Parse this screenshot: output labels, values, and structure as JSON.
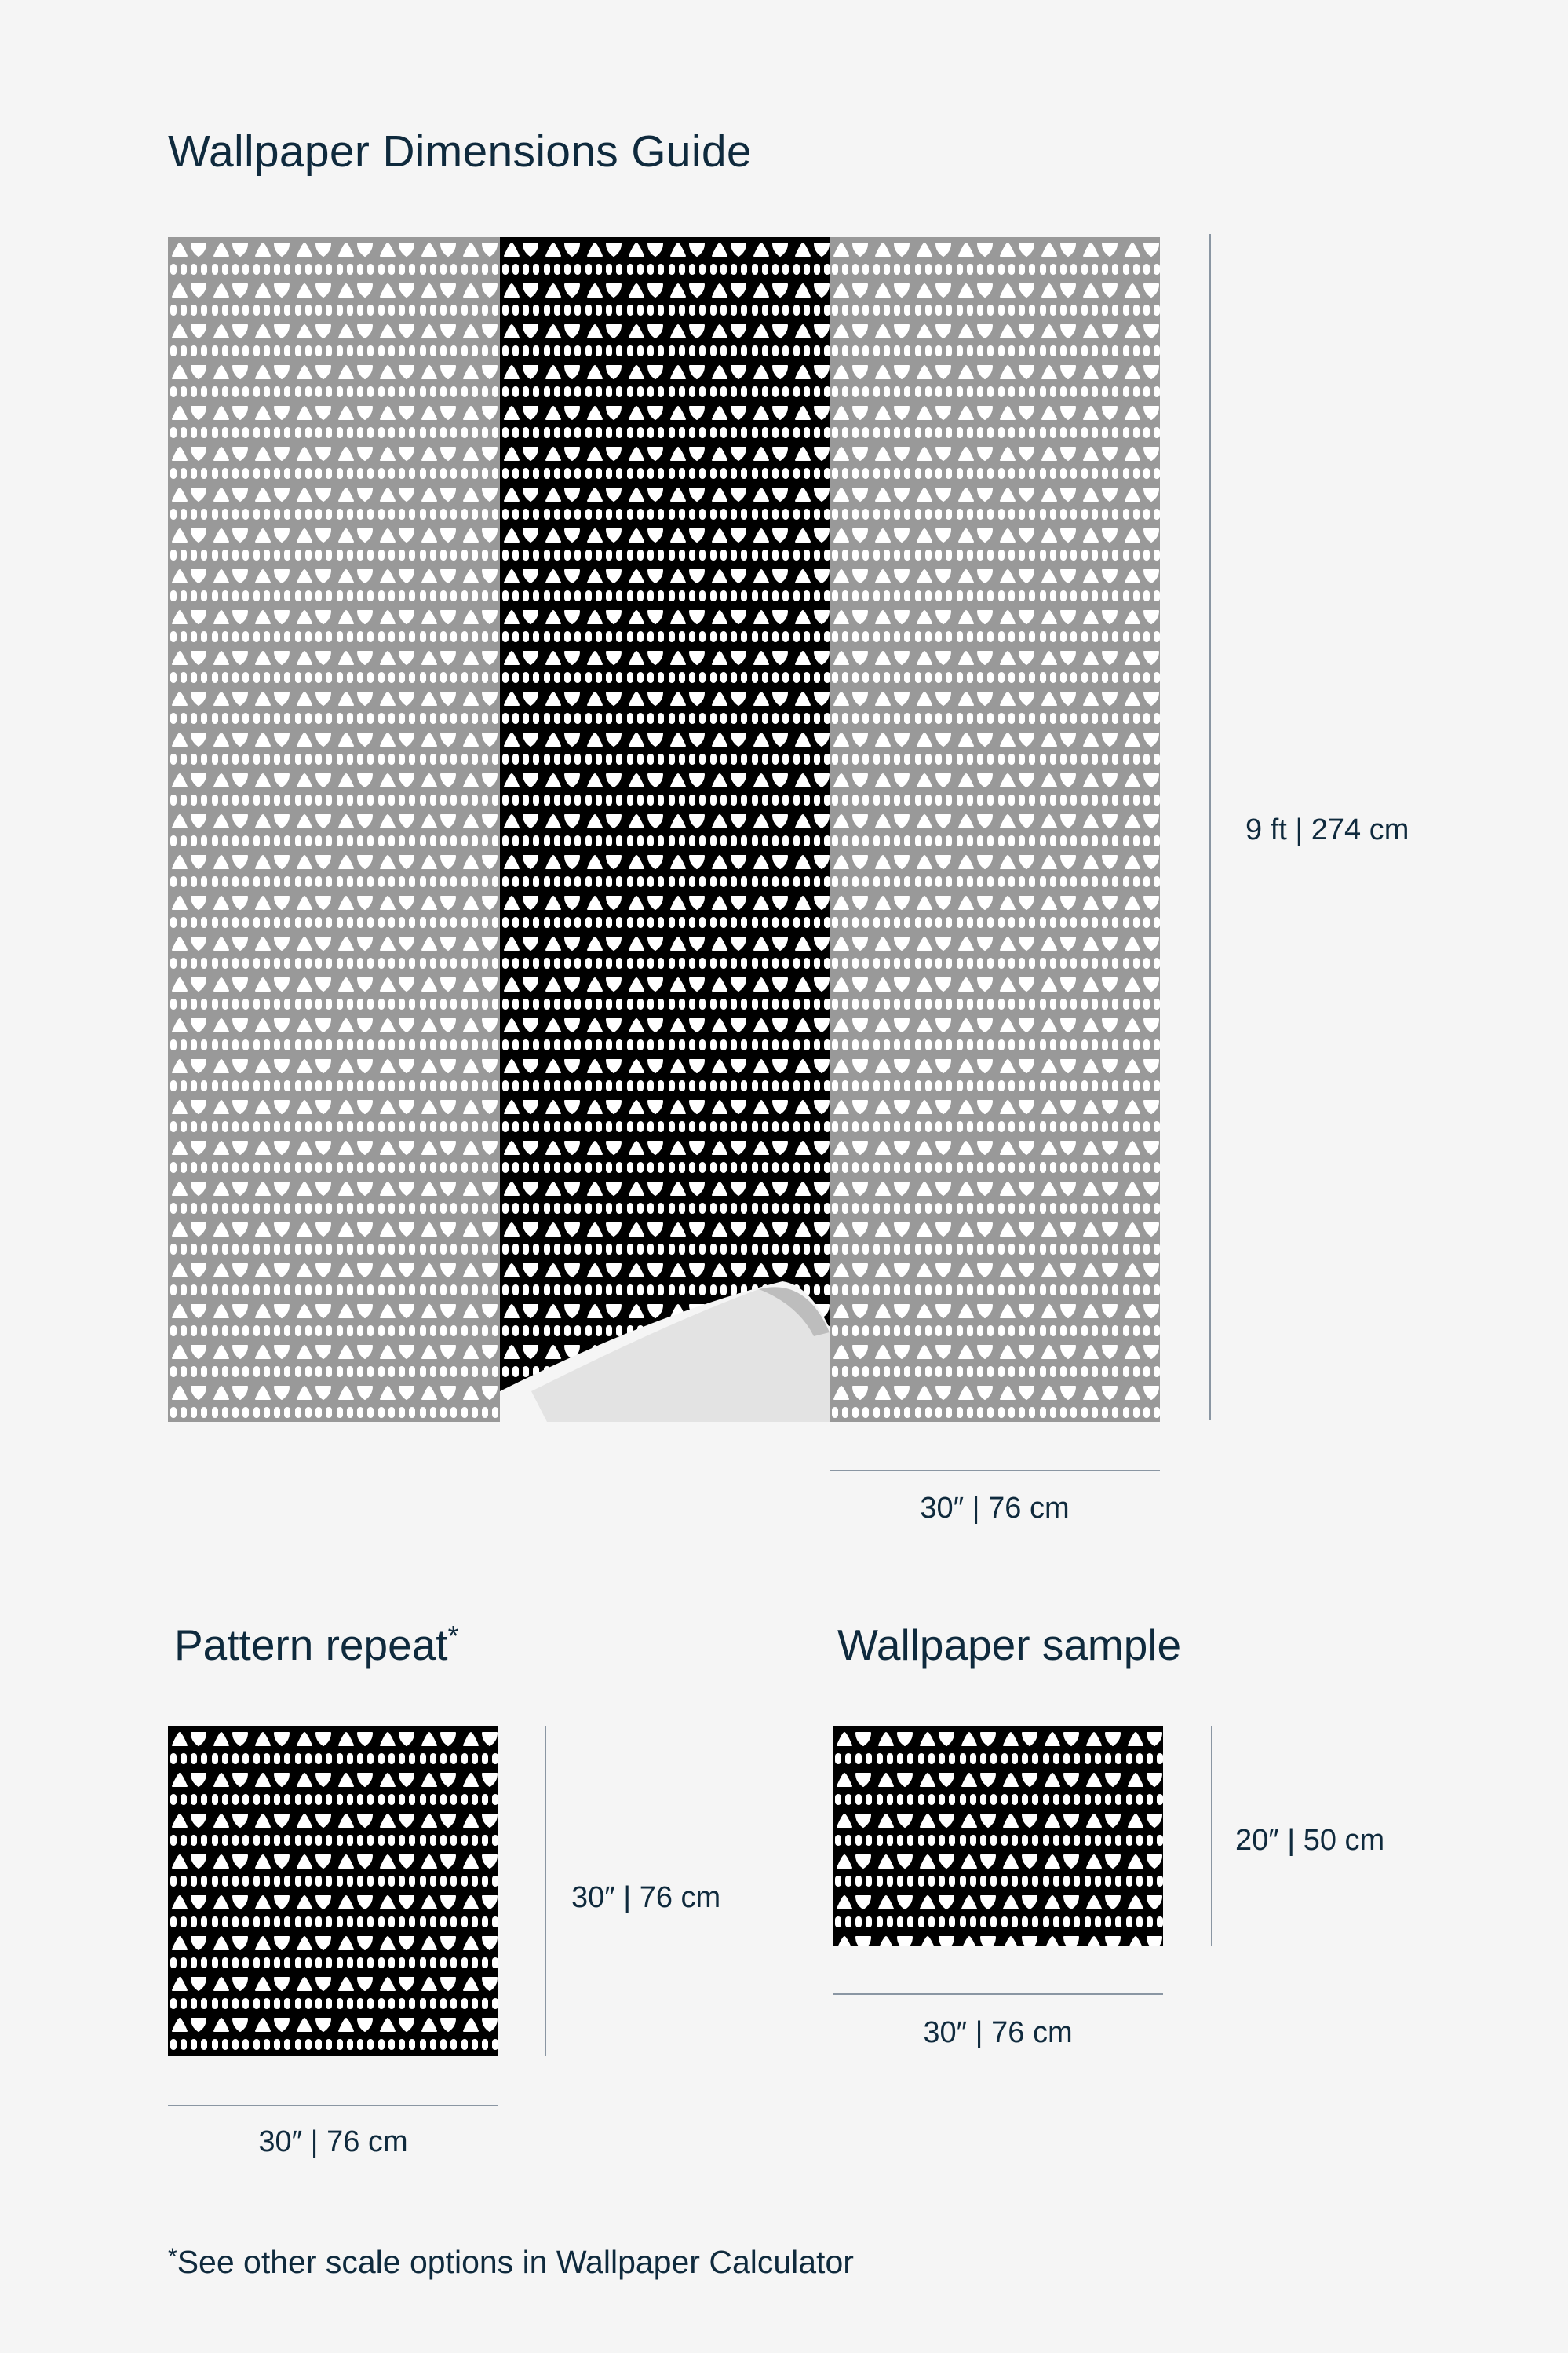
{
  "title": "Wallpaper Dimensions Guide",
  "main_preview": {
    "height_label": "9 ft | 274 cm",
    "width_label": "30″ | 76 cm",
    "panel_colors": [
      "#999999",
      "#000000",
      "#999999"
    ]
  },
  "pattern_repeat": {
    "heading": "Pattern repeat",
    "heading_mark": "*",
    "height_label": "30″ | 76 cm",
    "width_label": "30″ | 76 cm"
  },
  "sample": {
    "heading": "Wallpaper sample",
    "height_label": "20″ | 50 cm",
    "width_label": "30″ | 76 cm"
  },
  "footnote": {
    "mark": "*",
    "text": "See other scale options in Wallpaper Calculator"
  },
  "colors": {
    "text": "#0f2a3d",
    "background": "#f5f5f5",
    "rule": "#8a96a3"
  }
}
